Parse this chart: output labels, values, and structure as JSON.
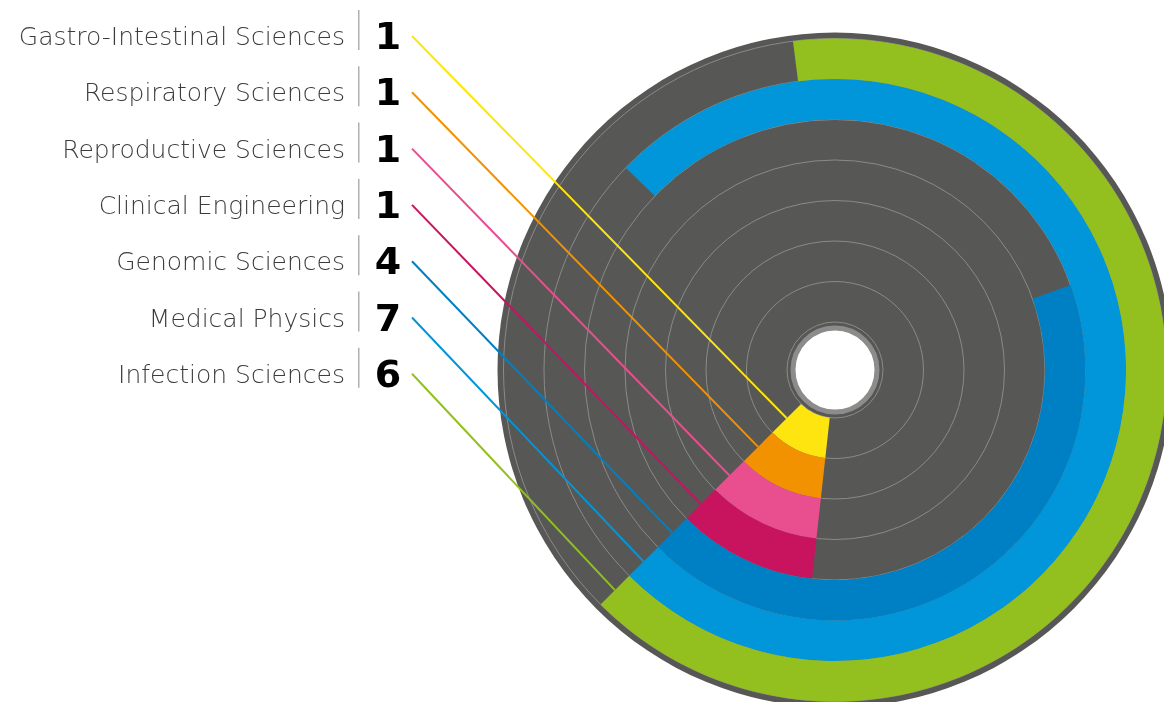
{
  "chart_data": {
    "type": "other",
    "categories": [
      "Gastro-Intestinal Sciences",
      "Respiratory Sciences",
      "Reproductive Sciences",
      "Clinical Engineering",
      "Genomic Sciences",
      "Medical Physics",
      "Infection Sciences"
    ],
    "values": [
      1,
      1,
      1,
      1,
      4,
      7,
      6
    ],
    "colors": [
      "#ffe50f",
      "#f39200",
      "#e94e8f",
      "#c8135f",
      "#0080c4",
      "#0096d9",
      "#93c01f"
    ],
    "data_labels": true
  }
}
